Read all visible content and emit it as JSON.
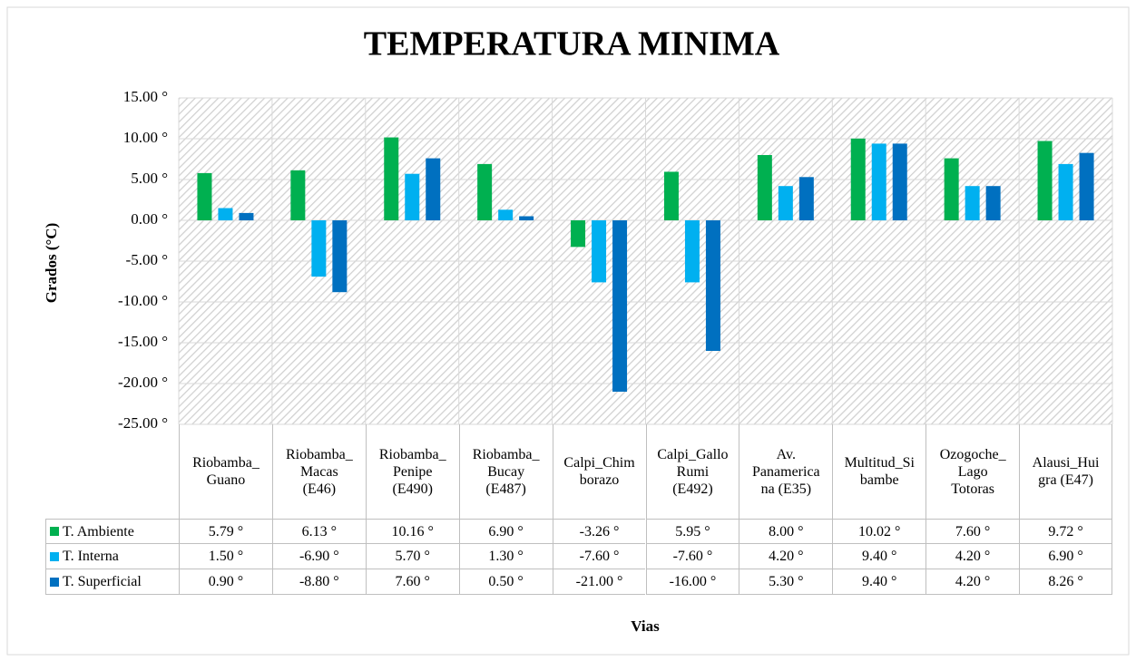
{
  "chart_data": {
    "type": "bar",
    "title": "TEMPERATURA MINIMA",
    "x_label": "Vias",
    "y_label": "Grados (°C)",
    "categories": [
      "Riobamba_Guano",
      "Riobamba_Macas (E46)",
      "Riobamba_Penipe (E490)",
      "Riobamba_Bucay (E487)",
      "Calpi_Chimborazo",
      "Calpi_Gallo Rumi (E492)",
      "Av. Panamericana (E35)",
      "Multitud_Sibambe",
      "Ozogoche_Lago Totoras",
      "Alausi_Huigra (E47)"
    ],
    "series": [
      {
        "name": "T. Ambiente",
        "color": "#00b050",
        "values": [
          5.79,
          6.13,
          10.16,
          6.9,
          -3.26,
          5.95,
          8.0,
          10.02,
          7.6,
          9.72
        ],
        "value_labels": [
          "5.79 °",
          "6.13 °",
          "10.16 °",
          "6.90 °",
          "-3.26 °",
          "5.95 °",
          "8.00 °",
          "10.02 °",
          "7.60 °",
          "9.72 °"
        ]
      },
      {
        "name": "T. Interna",
        "color": "#00b0f0",
        "values": [
          1.5,
          -6.9,
          5.7,
          1.3,
          -7.6,
          -7.6,
          4.2,
          9.4,
          4.2,
          6.9
        ],
        "value_labels": [
          "1.50 °",
          "-6.90 °",
          "5.70 °",
          "1.30 °",
          "-7.60 °",
          "-7.60 °",
          "4.20 °",
          "9.40 °",
          "4.20 °",
          "6.90 °"
        ]
      },
      {
        "name": "T. Superficial",
        "color": "#0070c0",
        "values": [
          0.9,
          -8.8,
          7.6,
          0.5,
          -21.0,
          -16.0,
          5.3,
          9.4,
          4.2,
          8.26
        ],
        "value_labels": [
          "0.90 °",
          "-8.80 °",
          "7.60 °",
          "0.50 °",
          "-21.00 °",
          "-16.00 °",
          "5.30 °",
          "9.40 °",
          "4.20 °",
          "8.26 °"
        ]
      }
    ],
    "ylim": [
      -25,
      15
    ],
    "yticks": [
      {
        "value": -25,
        "label": "-25.00 °"
      },
      {
        "value": -20,
        "label": "-20.00 °"
      },
      {
        "value": -15,
        "label": "-15.00 °"
      },
      {
        "value": -10,
        "label": "-10.00 °"
      },
      {
        "value": -5,
        "label": "-5.00 °"
      },
      {
        "value": 0,
        "label": "0.00 °"
      },
      {
        "value": 5,
        "label": "5.00 °"
      },
      {
        "value": 10,
        "label": "10.00 °"
      },
      {
        "value": 15,
        "label": "15.00 °"
      }
    ],
    "grid": true
  }
}
